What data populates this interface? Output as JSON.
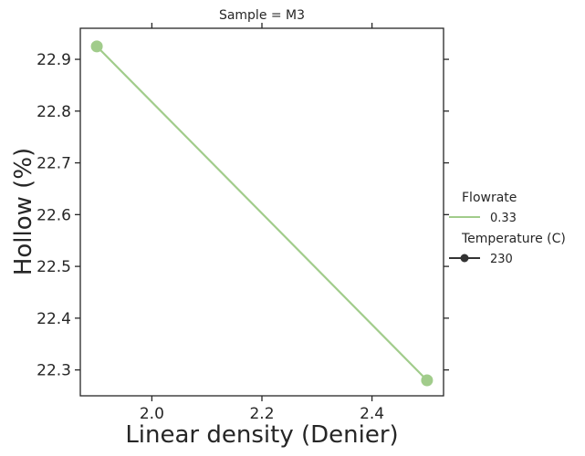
{
  "chart_data": {
    "type": "line",
    "title": "Sample = M3",
    "xlabel": "Linear density (Denier)",
    "ylabel": "Hollow (%)",
    "xlim": [
      1.87,
      2.53
    ],
    "ylim": [
      22.25,
      22.96
    ],
    "xticks": [
      2.0,
      2.2,
      2.4
    ],
    "xtick_labels": [
      "2.0",
      "2.2",
      "2.4"
    ],
    "yticks": [
      22.3,
      22.4,
      22.5,
      22.6,
      22.7,
      22.8,
      22.9
    ],
    "ytick_labels": [
      "22.3",
      "22.4",
      "22.5",
      "22.6",
      "22.7",
      "22.8",
      "22.9"
    ],
    "grid": false,
    "legend_placement": "right",
    "series": [
      {
        "name": "0.33",
        "color": "#a1cc8b",
        "x": [
          1.9,
          2.5
        ],
        "y": [
          22.925,
          22.28
        ]
      }
    ],
    "legend": {
      "groups": [
        {
          "title": "Flowrate",
          "entries": [
            {
              "label": "0.33",
              "marker": "line",
              "color": "#a1cc8b"
            }
          ]
        },
        {
          "title": "Temperature (C)",
          "entries": [
            {
              "label": "230",
              "marker": "line-dot",
              "color": "#333333"
            }
          ]
        }
      ]
    }
  }
}
